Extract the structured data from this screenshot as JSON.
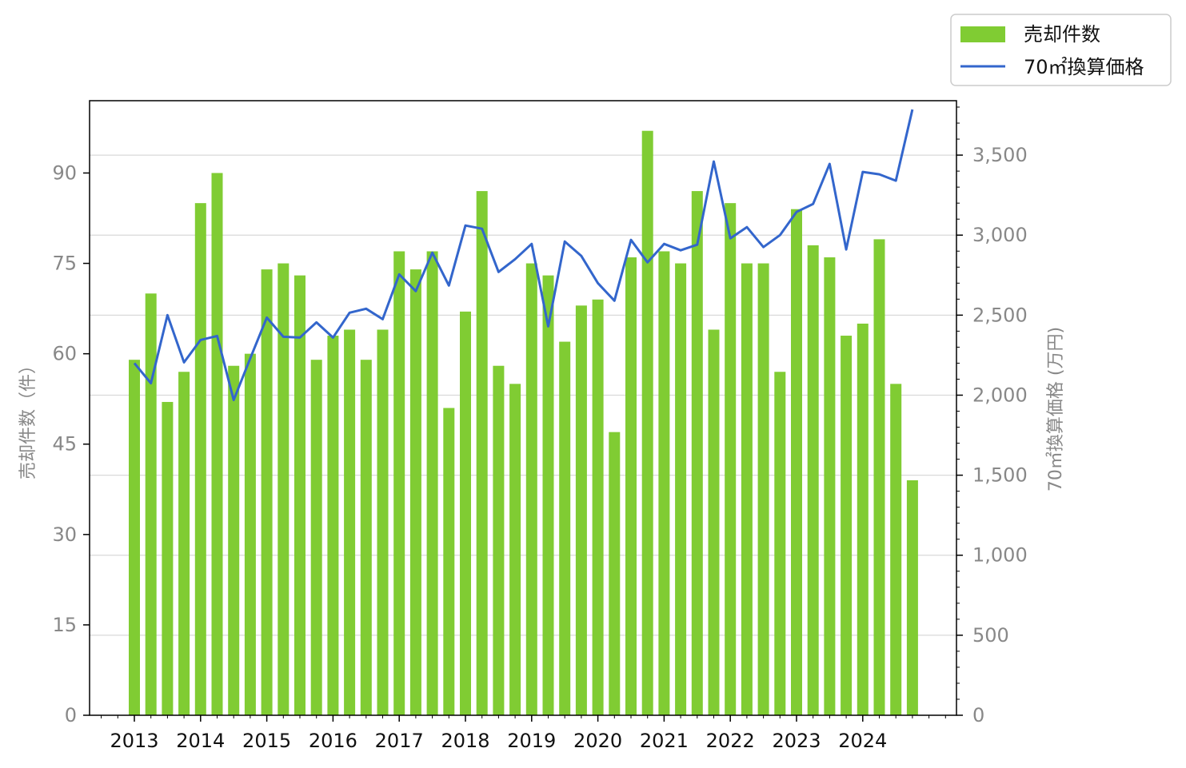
{
  "chart_data": {
    "type": "bar",
    "x": [
      "2013 Q1",
      "2013 Q2",
      "2013 Q3",
      "2013 Q4",
      "2014 Q1",
      "2014 Q2",
      "2014 Q3",
      "2014 Q4",
      "2015 Q1",
      "2015 Q2",
      "2015 Q3",
      "2015 Q4",
      "2016 Q1",
      "2016 Q2",
      "2016 Q3",
      "2016 Q4",
      "2017 Q1",
      "2017 Q2",
      "2017 Q3",
      "2017 Q4",
      "2018 Q1",
      "2018 Q2",
      "2018 Q3",
      "2018 Q4",
      "2019 Q1",
      "2019 Q2",
      "2019 Q3",
      "2019 Q4",
      "2020 Q1",
      "2020 Q2",
      "2020 Q3",
      "2020 Q4",
      "2021 Q1",
      "2021 Q2",
      "2021 Q3",
      "2021 Q4",
      "2022 Q1",
      "2022 Q2",
      "2022 Q3",
      "2022 Q4",
      "2023 Q1",
      "2023 Q2",
      "2023 Q3",
      "2023 Q4",
      "2024 Q1",
      "2024 Q2",
      "2024 Q3",
      "2024 Q4"
    ],
    "x_tick_labels": [
      "2013",
      "2014",
      "2015",
      "2016",
      "2017",
      "2018",
      "2019",
      "2020",
      "2021",
      "2022",
      "2023",
      "2024"
    ],
    "series": [
      {
        "name": "売却件数",
        "type": "bar",
        "axis": "left",
        "color": "#80cc33",
        "values": [
          59,
          70,
          52,
          57,
          85,
          90,
          58,
          60,
          74,
          75,
          73,
          59,
          63,
          64,
          59,
          64,
          77,
          74,
          77,
          51,
          67,
          87,
          58,
          55,
          75,
          73,
          62,
          68,
          69,
          47,
          76,
          97,
          77,
          75,
          87,
          64,
          85,
          75,
          75,
          57,
          84,
          78,
          76,
          63,
          65,
          79,
          55,
          39
        ]
      },
      {
        "name": "70㎡換算価格",
        "type": "line",
        "axis": "right",
        "color": "#3366cc",
        "values": [
          2200,
          2075,
          2500,
          2205,
          2345,
          2370,
          1970,
          2230,
          2485,
          2365,
          2360,
          2455,
          2360,
          2515,
          2540,
          2475,
          2755,
          2650,
          2890,
          2685,
          3060,
          3040,
          2770,
          2850,
          2945,
          2430,
          2960,
          2870,
          2700,
          2590,
          2970,
          2830,
          2945,
          2905,
          2940,
          3460,
          2980,
          3050,
          2925,
          3000,
          3145,
          3195,
          3445,
          2910,
          3395,
          3380,
          3340,
          3785
        ]
      }
    ],
    "y_left": {
      "label": "売却件数（件）",
      "ylim": [
        0,
        102
      ],
      "ticks": [
        "0",
        "15",
        "30",
        "45",
        "60",
        "75",
        "90"
      ]
    },
    "y_right": {
      "label": "70㎡換算価格 (万円)",
      "ylim": [
        0,
        3840
      ],
      "ticks": [
        "0",
        "500",
        "1,000",
        "1,500",
        "2,000",
        "2,500",
        "3,000",
        "3,500"
      ]
    },
    "grid": "horizontal, right axis",
    "legend": {
      "placement": "top-right",
      "entries": [
        {
          "label": "売却件数",
          "kind": "bar",
          "color": "#80cc33"
        },
        {
          "label": "70㎡換算価格",
          "kind": "line",
          "color": "#3366cc"
        }
      ]
    }
  }
}
